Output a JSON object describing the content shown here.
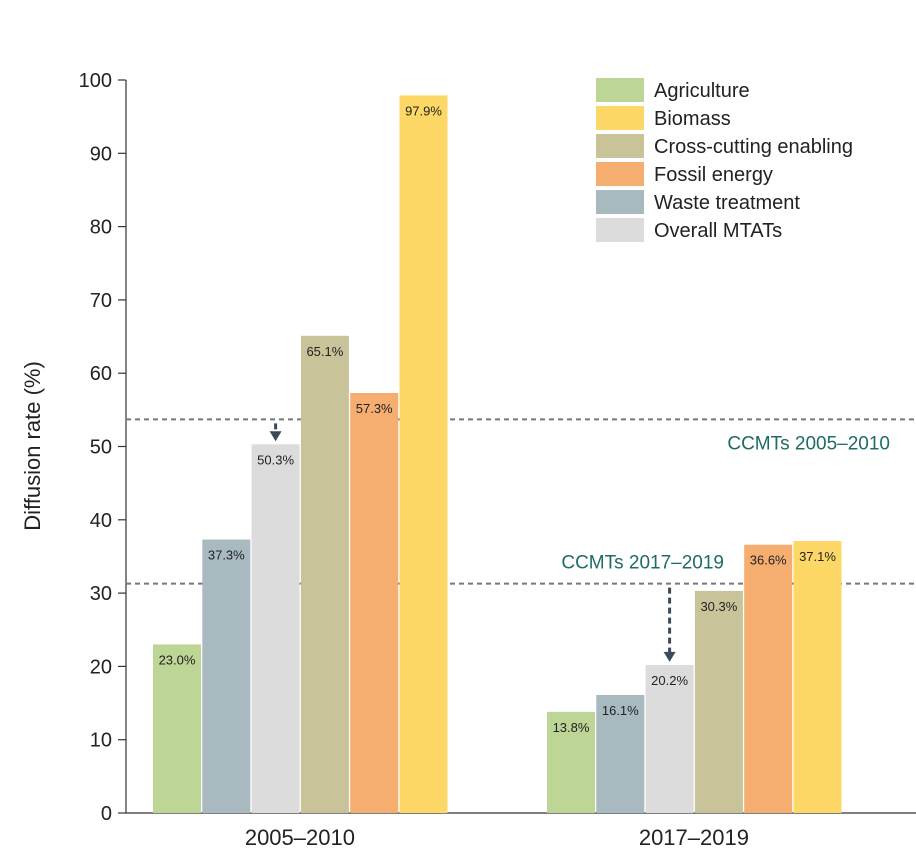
{
  "chart_data": {
    "type": "bar",
    "title": "",
    "xlabel": "",
    "ylabel": "Diffusion rate (%)",
    "ylim": [
      0,
      100
    ],
    "yticks": [
      0,
      10,
      20,
      30,
      40,
      50,
      60,
      70,
      80,
      90,
      100
    ],
    "grid": false,
    "legend_position": "top-right",
    "groups": [
      {
        "label": "2005–2010",
        "bars": [
          {
            "series": "Agriculture",
            "value": 23.0,
            "label": "23.0%"
          },
          {
            "series": "Waste treatment",
            "value": 37.3,
            "label": "37.3%"
          },
          {
            "series": "Overall MTATs",
            "value": 50.3,
            "label": "50.3%"
          },
          {
            "series": "Cross-cutting enabling",
            "value": 65.1,
            "label": "65.1%"
          },
          {
            "series": "Fossil energy",
            "value": 57.3,
            "label": "57.3%"
          },
          {
            "series": "Biomass",
            "value": 97.9,
            "label": "97.9%"
          }
        ]
      },
      {
        "label": "2017–2019",
        "bars": [
          {
            "series": "Agriculture",
            "value": 13.8,
            "label": "13.8%"
          },
          {
            "series": "Waste treatment",
            "value": 16.1,
            "label": "16.1%"
          },
          {
            "series": "Overall MTATs",
            "value": 20.2,
            "label": "20.2%"
          },
          {
            "series": "Cross-cutting enabling",
            "value": 30.3,
            "label": "30.3%"
          },
          {
            "series": "Fossil energy",
            "value": 36.6,
            "label": "36.6%"
          },
          {
            "series": "Biomass",
            "value": 37.1,
            "label": "37.1%"
          }
        ]
      }
    ],
    "legend": [
      {
        "name": "Agriculture",
        "color": "#bdd595"
      },
      {
        "name": "Biomass",
        "color": "#fdd866"
      },
      {
        "name": "Cross-cutting enabling",
        "color": "#c9c39a"
      },
      {
        "name": "Fossil energy",
        "color": "#f5ae70"
      },
      {
        "name": "Waste treatment",
        "color": "#a8b9c0"
      },
      {
        "name": "Overall MTATs",
        "color": "#dcdcdc"
      }
    ],
    "reference_lines": [
      {
        "label": "CCMTs 2005–2010",
        "value": 53.7,
        "group": 0
      },
      {
        "label": "CCMTs 2017–2019",
        "value": 31.3,
        "group": 1
      }
    ],
    "ref_color": "#1f6b66",
    "arrow_color": "#3b4a5a"
  }
}
